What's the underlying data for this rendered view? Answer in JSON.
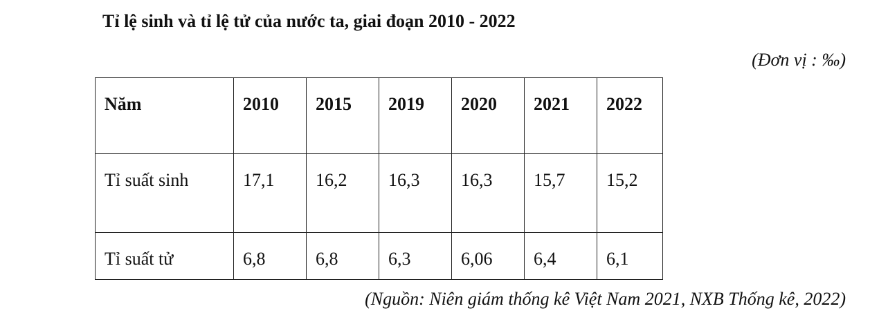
{
  "title": "Tỉ lệ sinh và tỉ lệ tử của nước ta, giai đoạn 2010 - 2022",
  "unit": "(Đơn vị : ‰)",
  "table": {
    "header": [
      "Năm",
      "2010",
      "2015",
      "2019",
      "2020",
      "2021",
      "2022"
    ],
    "rows": [
      [
        "Tỉ suất sinh",
        "17,1",
        "16,2",
        "16,3",
        "16,3",
        "15,7",
        "15,2"
      ],
      [
        "Tỉ suất tử",
        "6,8",
        "6,8",
        "6,3",
        "6,06",
        "6,4",
        "6,1"
      ]
    ]
  },
  "source": "(Nguồn: Niên giám thống kê Việt Nam 2021, NXB Thống kê, 2022)"
}
